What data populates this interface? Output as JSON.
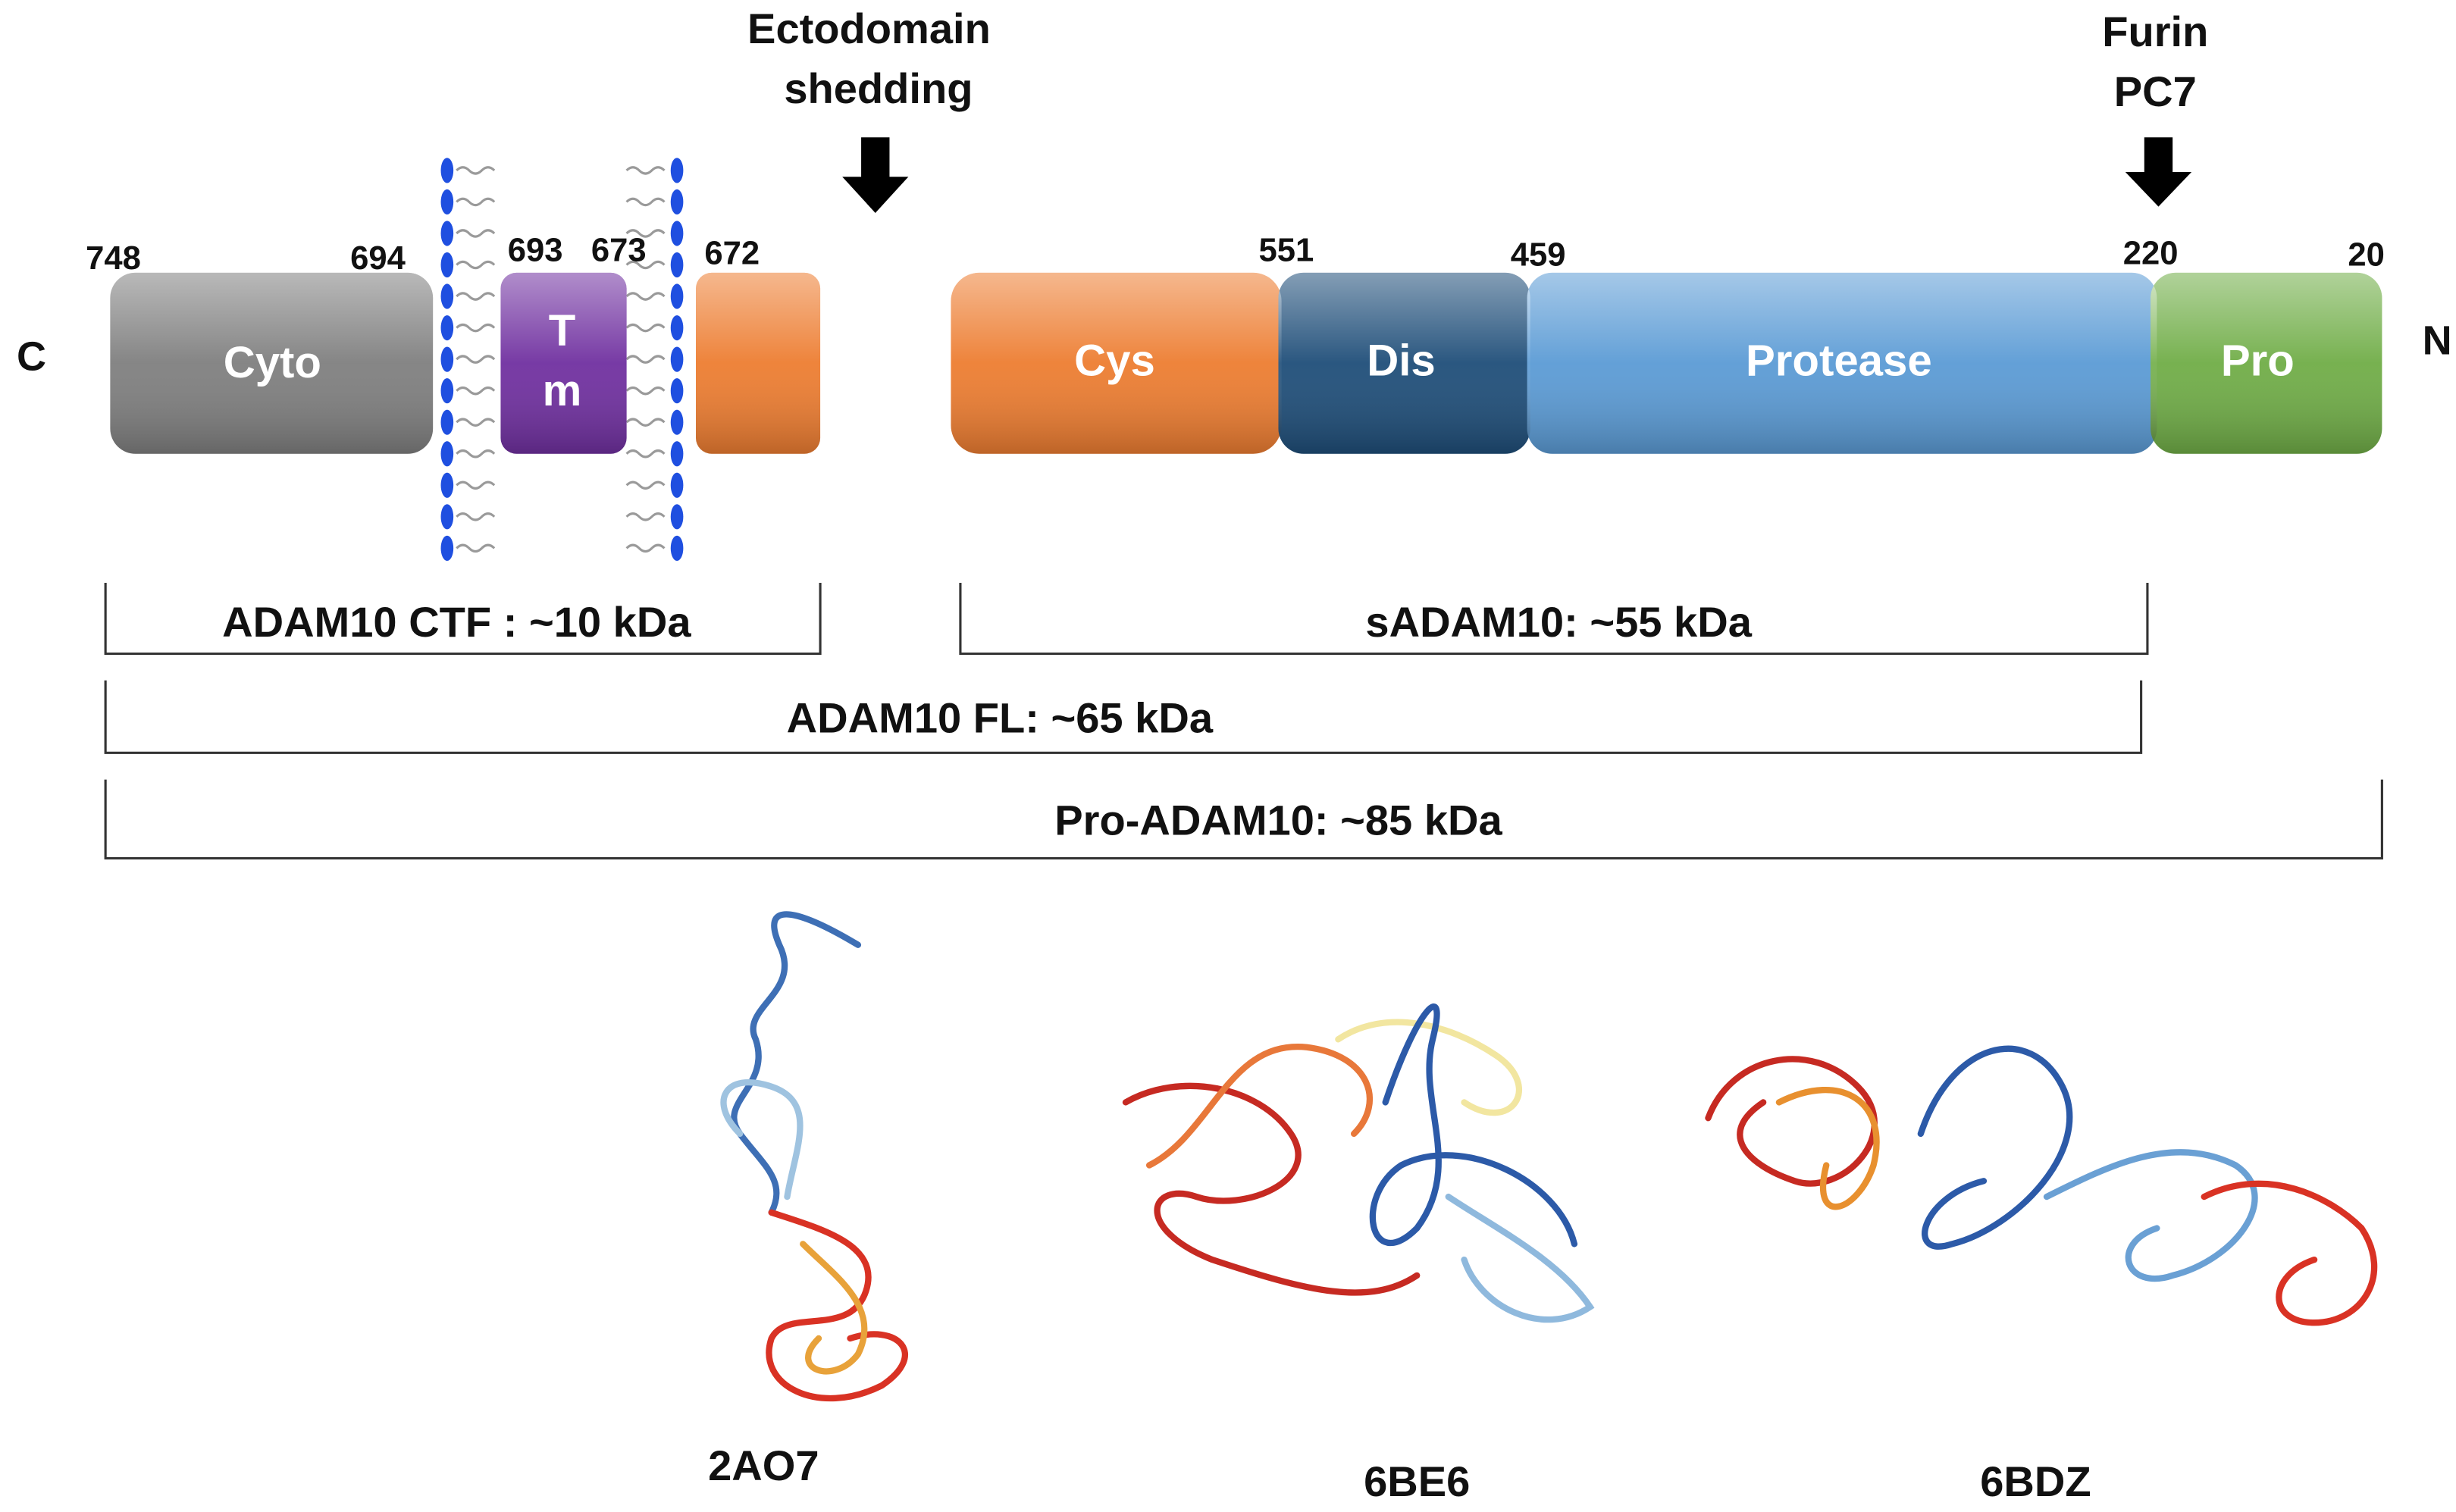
{
  "terminals": {
    "left": "C",
    "right": "N"
  },
  "domains": [
    {
      "label": [
        "Cyto"
      ]
    },
    {
      "label": [
        "T",
        "m"
      ]
    },
    {
      "label": [
        "Cys"
      ]
    },
    {
      "label": [
        "Dis"
      ]
    },
    {
      "label": [
        "Protease"
      ]
    },
    {
      "label": [
        "Pro"
      ]
    }
  ],
  "residues": [
    "748",
    "694",
    "693",
    "673",
    "672",
    "551",
    "459",
    "220",
    "20"
  ],
  "cleavage_sites": [
    {
      "label": [
        "Ectodomain",
        "shedding"
      ]
    },
    {
      "label": [
        "Furin",
        "PC7"
      ]
    }
  ],
  "fragments": [
    "ADAM10  CTF : ~10 kDa",
    "sADAM10:  ~55 kDa",
    "ADAM10  FL: ~65 kDa",
    "Pro-ADAM10:  ~85 kDa"
  ],
  "structures": [
    "2AO7",
    "6BE6",
    "6BDZ"
  ]
}
